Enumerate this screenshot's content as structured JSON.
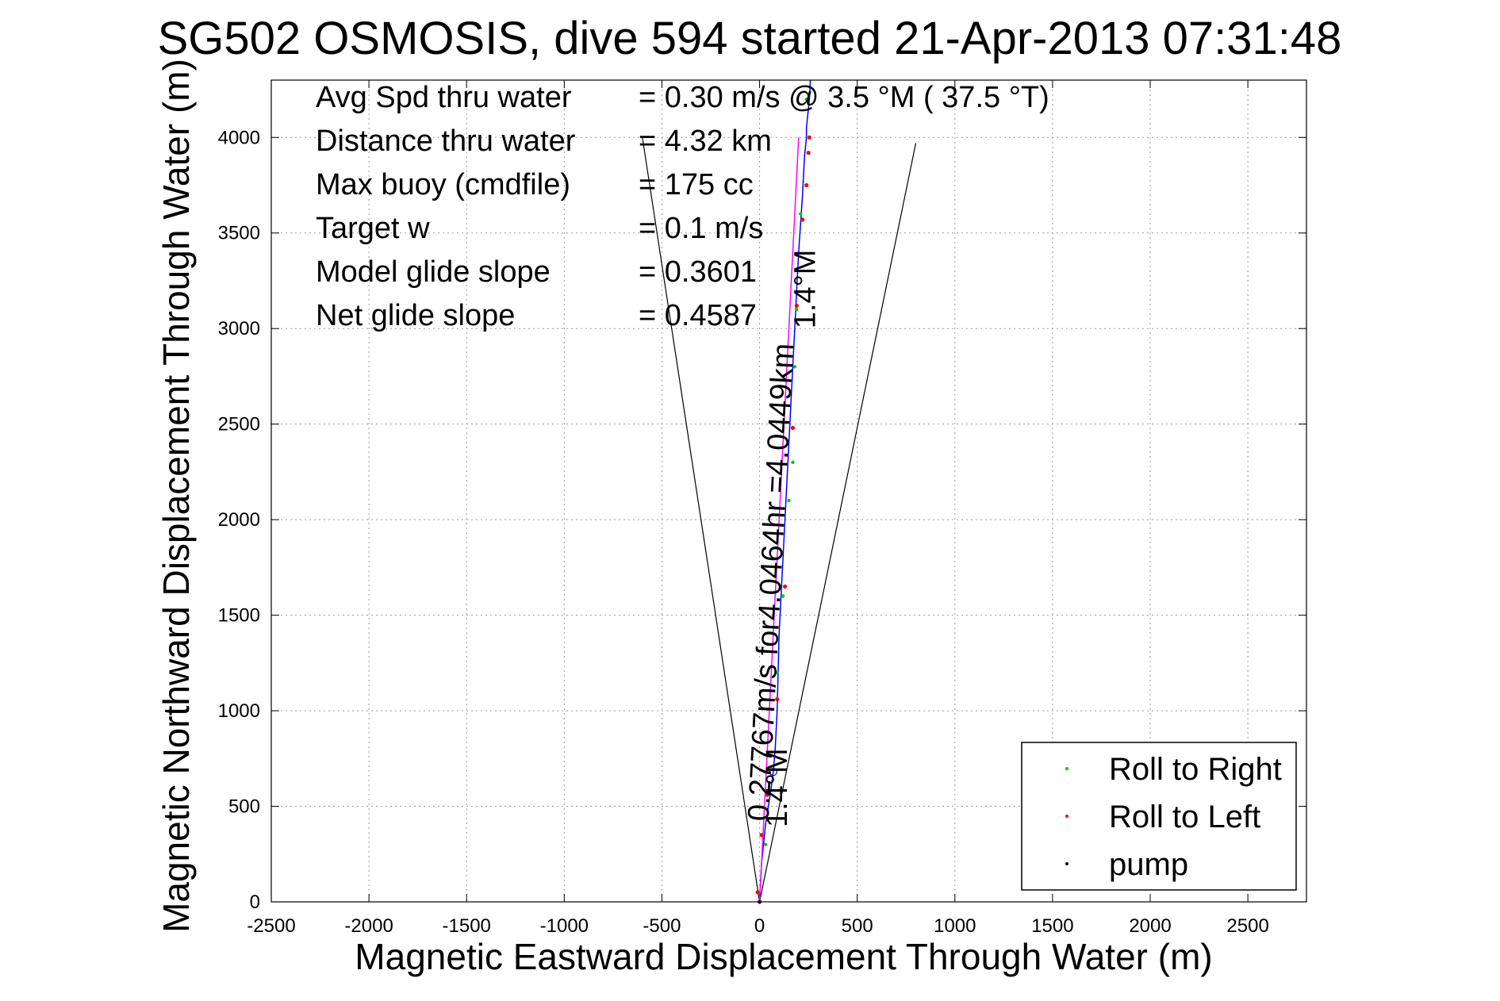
{
  "chart_data": {
    "type": "line",
    "title": "SG502 OSMOSIS, dive 594 started 21-Apr-2013 07:31:48",
    "xlabel": "Magnetic Eastward Displacement Through Water (m)",
    "ylabel": "Magnetic Northward Displacement Through Water (m)",
    "xlim": [
      -2500,
      2800
    ],
    "ylim": [
      0,
      4300
    ],
    "xticks": [
      -2500,
      -2000,
      -1500,
      -1000,
      -500,
      0,
      500,
      1000,
      1500,
      2000,
      2500
    ],
    "yticks": [
      0,
      500,
      1000,
      1500,
      2000,
      2500,
      3000,
      3500,
      4000
    ],
    "grid": true,
    "info": [
      {
        "label": "Avg Spd thru water",
        "value": "=  0.30 m/s @   3.5 °M ( 37.5 °T)"
      },
      {
        "label": "Distance thru water",
        "value": "=  4.32 km"
      },
      {
        "label": "Max buoy (cmdfile)",
        "value": "= 175 cc"
      },
      {
        "label": "Target w",
        "value": "= 0.1 m/s"
      },
      {
        "label": "Model glide slope",
        "value": "= 0.3601"
      },
      {
        "label": "Net glide slope",
        "value": "= 0.4587"
      }
    ],
    "annotations": {
      "track_label": "0.27767m/s for4.0464hr =4.0449km",
      "heading_start": "1.4°M",
      "heading_end": "1.4°M"
    },
    "series": [
      {
        "name": "track",
        "color": "#0000ff",
        "x": [
          0,
          5,
          10,
          20,
          30,
          45,
          60,
          70,
          80,
          90,
          95,
          100,
          110,
          120,
          130,
          140,
          150,
          155,
          160,
          170,
          180,
          190,
          200,
          210,
          220,
          225,
          230,
          235,
          240,
          240,
          245,
          250,
          255,
          260
        ],
        "y": [
          0,
          100,
          200,
          300,
          400,
          500,
          600,
          680,
          800,
          1000,
          1200,
          1400,
          1600,
          1800,
          2000,
          2200,
          2400,
          2500,
          2600,
          2800,
          3000,
          3200,
          3400,
          3550,
          3700,
          3800,
          3900,
          3950,
          4000,
          4050,
          4100,
          4150,
          4200,
          4300
        ]
      },
      {
        "name": "heading line",
        "color": "#ff00ff",
        "x": [
          0,
          200
        ],
        "y": [
          0,
          4000
        ]
      }
    ],
    "wedge_lines": [
      {
        "x": [
          0,
          -600
        ],
        "y": [
          0,
          4000
        ]
      },
      {
        "x": [
          0,
          800
        ],
        "y": [
          0,
          3970
        ]
      }
    ],
    "roll_right": {
      "name": "Roll to Right",
      "color": "#00cc00",
      "x": [
        45,
        30,
        90,
        120,
        150,
        170,
        180,
        190,
        210,
        240
      ],
      "y": [
        580,
        300,
        1200,
        1600,
        2100,
        2300,
        2800,
        3100,
        3600,
        4200
      ]
    },
    "roll_left": {
      "name": "Roll to Left",
      "color": "#ff0000",
      "x": [
        -10,
        0,
        10,
        40,
        90,
        130,
        170,
        190,
        220,
        240,
        250,
        255
      ],
      "y": [
        50,
        0,
        350,
        560,
        1060,
        1650,
        2480,
        3120,
        3570,
        3750,
        3920,
        4000
      ]
    },
    "pump": {
      "name": "pump",
      "color": "#000000",
      "x": [
        0
      ],
      "y": [
        0
      ]
    },
    "legend_position": "bottom-right"
  }
}
